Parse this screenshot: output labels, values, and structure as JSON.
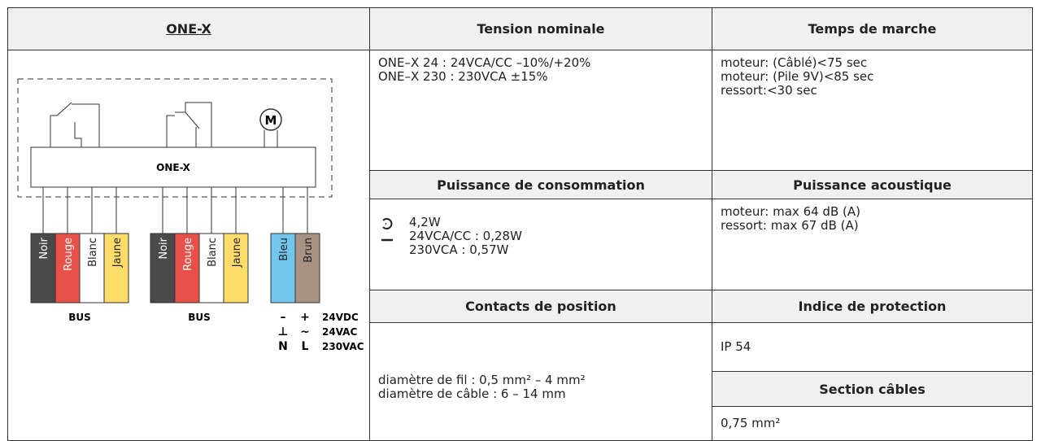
{
  "title": "ONE-X",
  "diagram": {
    "module": "ONE-X",
    "motor": "M",
    "groups": [
      {
        "wires": [
          {
            "name": "Noir",
            "color": "#4a4a4a"
          },
          {
            "name": "Rouge",
            "color": "#e8504a"
          },
          {
            "name": "Blanc",
            "color": "#ffffff"
          },
          {
            "name": "Jaune",
            "color": "#fddc6a"
          }
        ],
        "label": "BUS"
      },
      {
        "wires": [
          {
            "name": "Noir",
            "color": "#4a4a4a"
          },
          {
            "name": "Rouge",
            "color": "#e8504a"
          },
          {
            "name": "Blanc",
            "color": "#ffffff"
          },
          {
            "name": "Jaune",
            "color": "#fddc6a"
          }
        ],
        "label": "BUS"
      }
    ],
    "power": {
      "wires": [
        {
          "name": "Bleu",
          "color": "#72c6ec"
        },
        {
          "name": "Brun",
          "color": "#a89282"
        }
      ],
      "rows": [
        [
          "–",
          "+",
          "24VDC"
        ],
        [
          "⊥",
          "~",
          "24VAC"
        ],
        [
          "N",
          "L",
          "230VAC"
        ]
      ]
    }
  },
  "tension": {
    "heading": "Tension nominale",
    "lines": [
      "ONE–X 24 : 24VCA/CC –10%/+20%",
      "ONE–X 230 : 230VCA ±15%"
    ]
  },
  "temps": {
    "heading": "Temps de marche",
    "rows": [
      [
        "moteur: (Câblé)",
        "<75 sec"
      ],
      [
        "moteur: (Pile 9V)",
        "<85 sec"
      ],
      [
        "ressort:",
        "<30 sec"
      ]
    ]
  },
  "puissance": {
    "heading": "Puissance de consommation",
    "lines": [
      "4,2W",
      "24VCA/CC : 0,28W",
      "230VCA : 0,57W"
    ]
  },
  "acoustique": {
    "heading": "Puissance acoustique",
    "lines": [
      "moteur: max 64 dB (A)",
      "ressort: max 67 dB (A)"
    ]
  },
  "contacts": {
    "heading": "Contacts de position",
    "lines": [
      "diamètre de fil : 0,5 mm² – 4 mm²",
      "diamètre de câble : 6 – 14 mm"
    ]
  },
  "protection": {
    "heading": "Indice de protection",
    "value": "IP 54"
  },
  "cables": {
    "heading": "Section câbles",
    "value": "0,75 mm²"
  }
}
